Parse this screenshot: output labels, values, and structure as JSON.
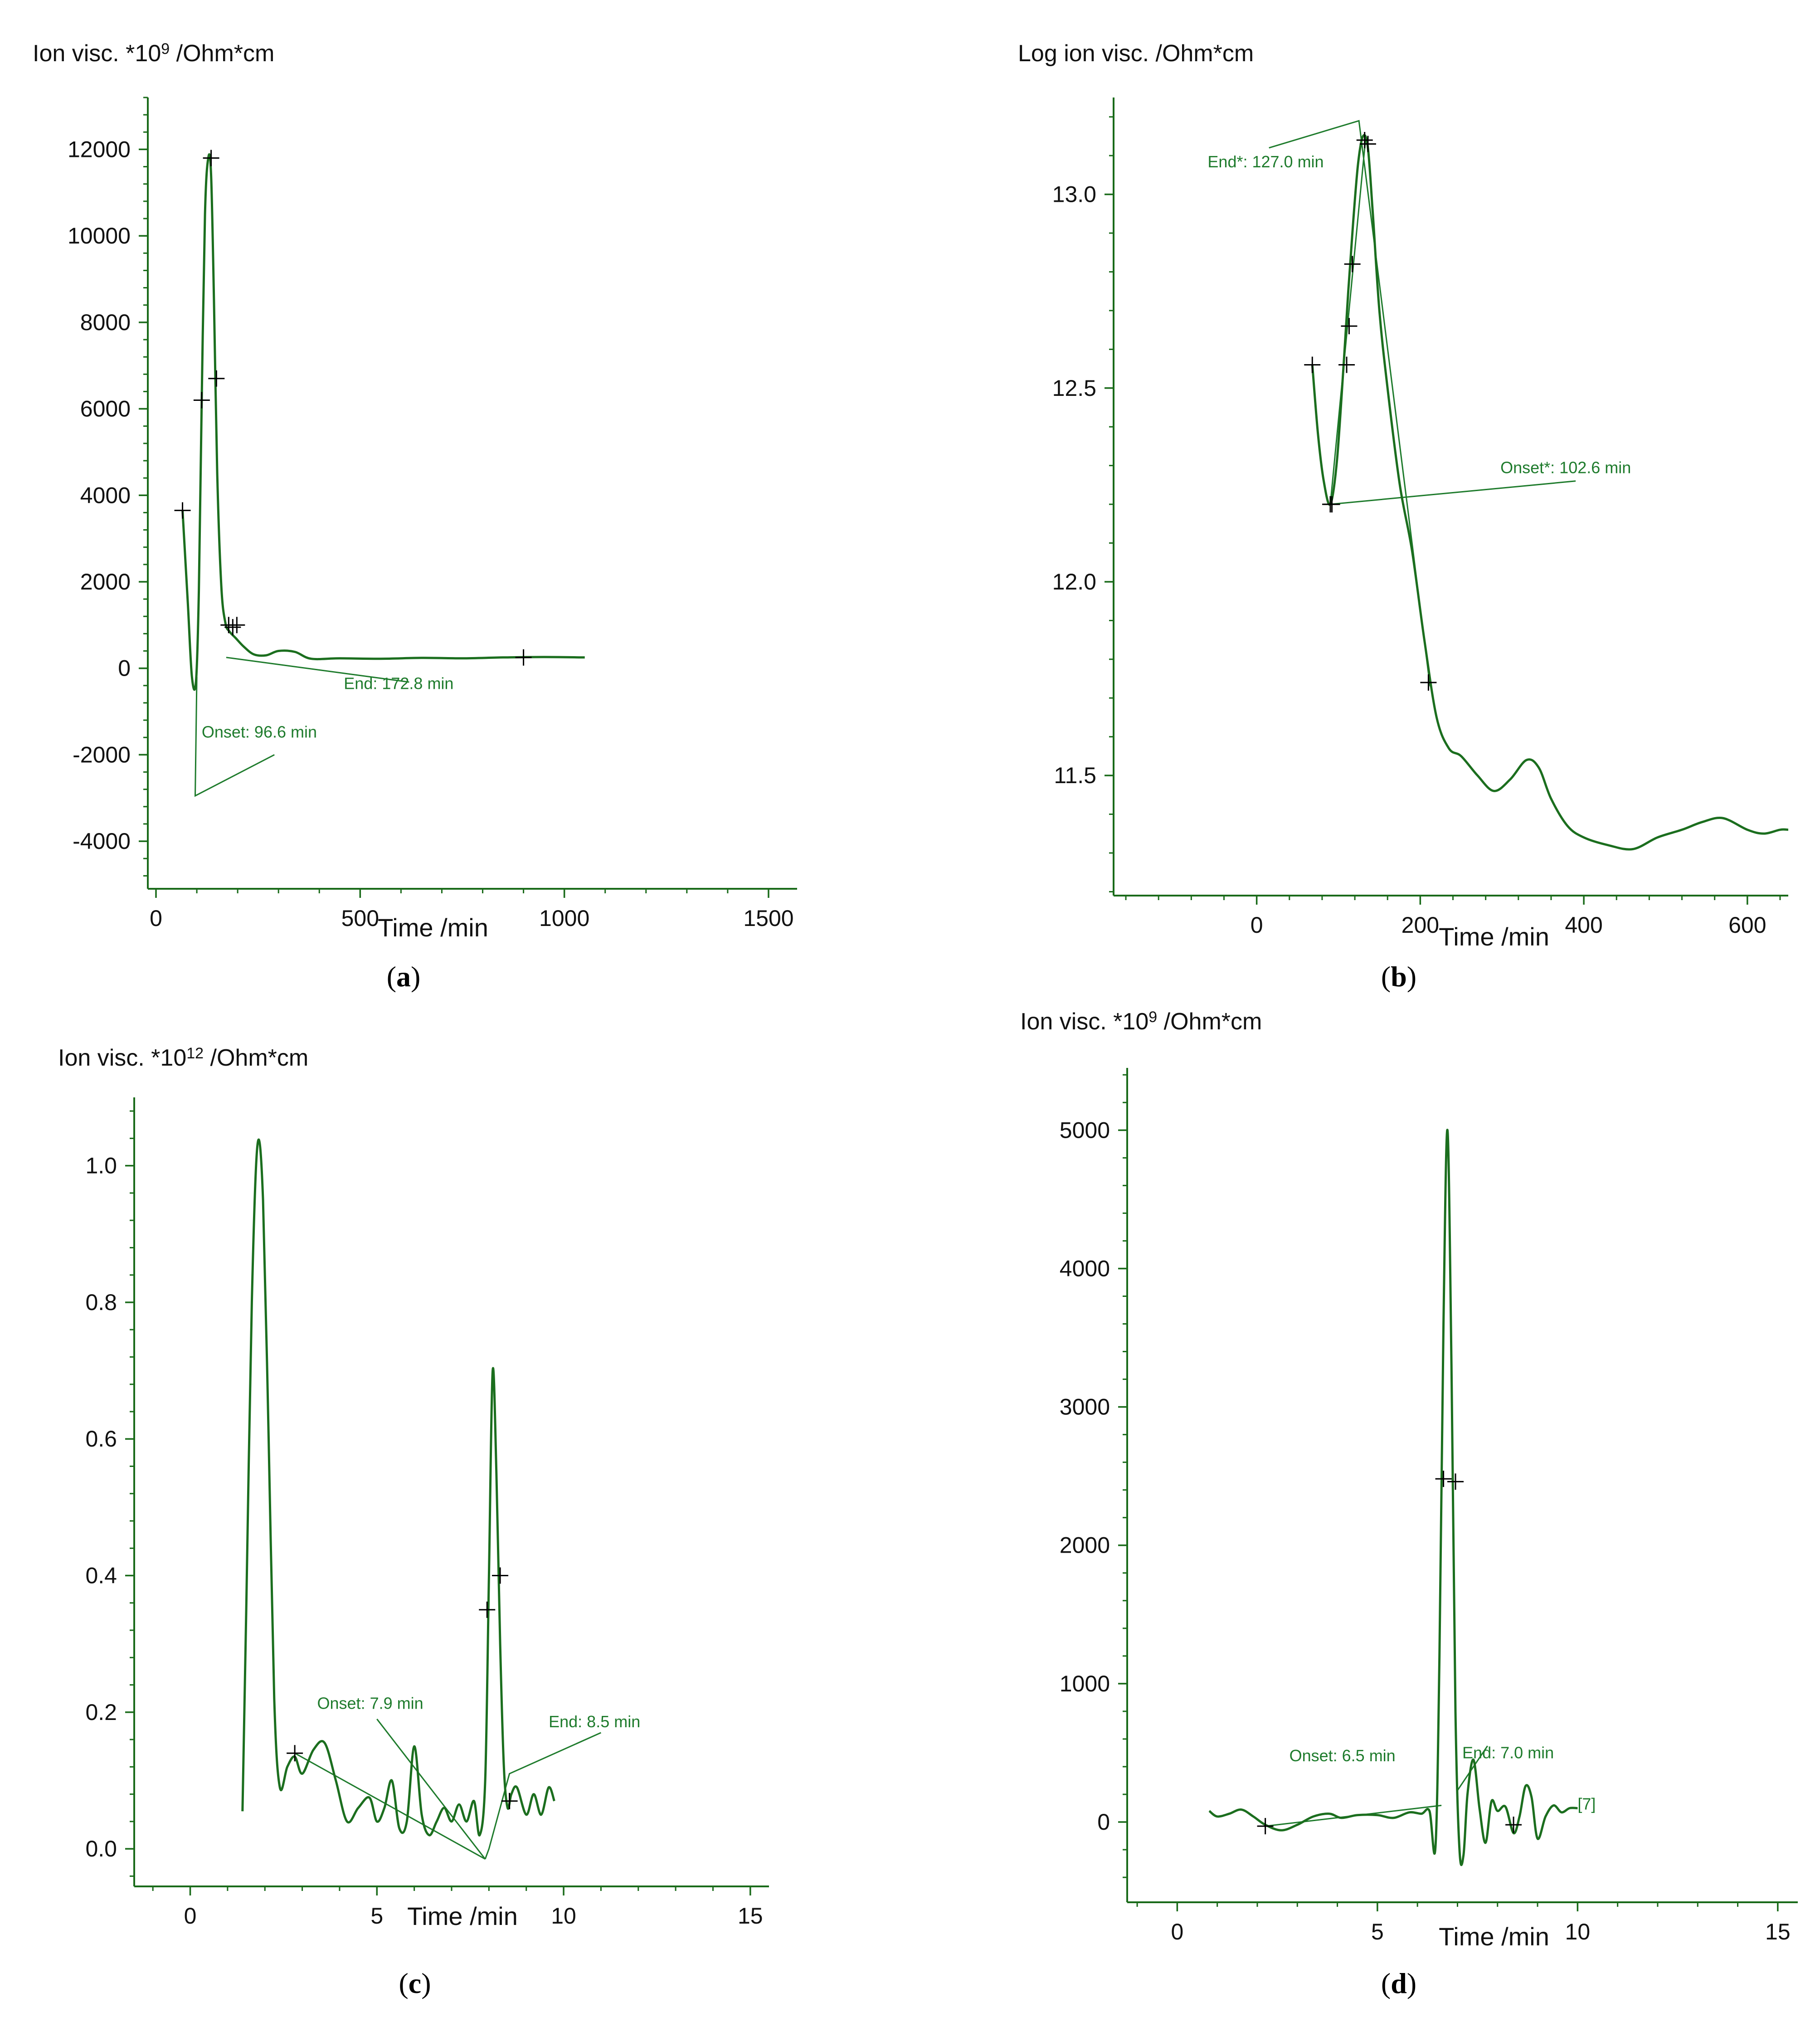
{
  "colors": {
    "curve": "#1b6e1e",
    "annotation": "#1e7b2c",
    "axis": "#1a6b1a",
    "marker": "#000000"
  },
  "chart_data": [
    {
      "panel": "a",
      "type": "line",
      "ylabel_base": "Ion visc. *10",
      "ylabel_exp": "9",
      "ylabel_unit": " /Ohm*cm",
      "xlabel": "Time /min",
      "xlim": [
        -20,
        1570
      ],
      "ylim": [
        -5100,
        13200
      ],
      "xticks": [
        0,
        500,
        1000,
        1500
      ],
      "xtick_labels": [
        "0",
        "500",
        "1000",
        "1500"
      ],
      "yticks": [
        -4000,
        -2000,
        0,
        2000,
        4000,
        6000,
        8000,
        10000,
        12000
      ],
      "ytick_labels": [
        "-4000",
        "-2000",
        "0",
        "2000",
        "4000",
        "6000",
        "8000",
        "10000",
        "12000"
      ],
      "series": [
        {
          "name": "ion viscosity",
          "x": [
            65,
            78,
            88,
            98,
            105,
            112,
            120,
            128,
            135,
            142,
            150,
            160,
            170,
            180,
            195,
            215,
            240,
            270,
            300,
            340,
            380,
            450,
            550,
            650,
            750,
            850,
            950,
            1050
          ],
          "y": [
            3650,
            1500,
            -200,
            -300,
            1800,
            6200,
            10500,
            11800,
            11400,
            8500,
            4500,
            1900,
            1050,
            850,
            700,
            500,
            320,
            300,
            400,
            380,
            220,
            230,
            220,
            240,
            230,
            250,
            260,
            250
          ]
        }
      ],
      "markers": [
        [
          65,
          3650
        ],
        [
          112,
          6200
        ],
        [
          135,
          11800
        ],
        [
          148,
          6700
        ],
        [
          178,
          1000
        ],
        [
          188,
          950
        ],
        [
          198,
          1000
        ],
        [
          900,
          250
        ]
      ],
      "annotations": [
        {
          "label": "Onset: 96.6 min",
          "x": 112,
          "y": -1600,
          "lines": [
            [
              [
                100,
                -200
              ],
              [
                96,
                -2950
              ],
              [
                290,
                -2000
              ]
            ]
          ]
        },
        {
          "label": "End: 172.8 min",
          "x": 460,
          "y": -480,
          "lines": [
            [
              [
                172,
                250
              ],
              [
                620,
                -320
              ]
            ]
          ]
        }
      ]
    },
    {
      "panel": "b",
      "type": "line",
      "ylabel_base": "Log ion visc. /Ohm*cm",
      "ylabel_exp": "",
      "ylabel_unit": "",
      "xlabel": "Time /min",
      "xlim": [
        -175,
        650
      ],
      "ylim": [
        11.19,
        13.25
      ],
      "xticks": [
        0,
        200,
        400,
        600
      ],
      "xtick_labels": [
        "0",
        "200",
        "400",
        "600"
      ],
      "yticks": [
        11.5,
        12.0,
        12.5,
        13.0
      ],
      "ytick_labels": [
        "11.5",
        "12.0",
        "12.5",
        "13.0"
      ],
      "series": [
        {
          "name": "log ion viscosity",
          "x": [
            68,
            75,
            82,
            90,
            98,
            106,
            112,
            118,
            124,
            130,
            136,
            142,
            150,
            160,
            175,
            190,
            205,
            220,
            235,
            250,
            270,
            290,
            310,
            330,
            345,
            360,
            380,
            400,
            430,
            460,
            490,
            520,
            545,
            570,
            600,
            620,
            640,
            650
          ],
          "y": [
            12.56,
            12.38,
            12.26,
            12.2,
            12.31,
            12.55,
            12.75,
            12.93,
            13.08,
            13.15,
            13.12,
            12.95,
            12.7,
            12.5,
            12.25,
            12.08,
            11.85,
            11.65,
            11.57,
            11.55,
            11.5,
            11.46,
            11.49,
            11.54,
            11.52,
            11.44,
            11.37,
            11.34,
            11.32,
            11.31,
            11.34,
            11.36,
            11.38,
            11.39,
            11.36,
            11.35,
            11.36,
            11.36
          ]
        }
      ],
      "markers": [
        [
          68,
          12.56
        ],
        [
          90,
          12.2
        ],
        [
          92,
          12.2
        ],
        [
          110,
          12.56
        ],
        [
          113,
          12.66
        ],
        [
          117,
          12.82
        ],
        [
          132,
          13.14
        ],
        [
          136,
          13.13
        ],
        [
          210,
          11.74
        ]
      ],
      "annotations": [
        {
          "label": "End*: 127.0 min",
          "x": -60,
          "y": 13.07,
          "lines": [
            [
              [
                15,
                13.12
              ],
              [
                125,
                13.19
              ],
              [
                212,
                11.73
              ]
            ]
          ]
        },
        {
          "label": "Onset*: 102.6 min",
          "x": 298,
          "y": 12.28,
          "lines": [
            [
              [
                90,
                12.2
              ],
              [
                390,
                12.26
              ]
            ],
            [
              [
                90,
                12.2
              ],
              [
                133,
                13.14
              ]
            ]
          ]
        }
      ]
    },
    {
      "panel": "c",
      "type": "line",
      "ylabel_base": "Ion visc. *10",
      "ylabel_exp": "12",
      "ylabel_unit": " /Ohm*cm",
      "xlabel": "Time /min",
      "xlim": [
        -1.5,
        15.5
      ],
      "ylim": [
        -0.055,
        1.1
      ],
      "xticks": [
        0,
        5,
        10,
        15
      ],
      "xtick_labels": [
        "0",
        "5",
        "10",
        "15"
      ],
      "yticks": [
        0.0,
        0.2,
        0.4,
        0.6,
        0.8,
        1.0
      ],
      "ytick_labels": [
        "0.0",
        "0.2",
        "0.4",
        "0.6",
        "0.8",
        "1.0"
      ],
      "series": [
        {
          "name": "ion viscosity",
          "x": [
            1.4,
            1.5,
            1.65,
            1.8,
            1.95,
            2.1,
            2.25,
            2.4,
            2.6,
            2.8,
            3.0,
            3.3,
            3.6,
            3.9,
            4.2,
            4.5,
            4.8,
            5.0,
            5.2,
            5.4,
            5.6,
            5.8,
            6.0,
            6.2,
            6.4,
            6.6,
            6.8,
            7.0,
            7.2,
            7.4,
            7.6,
            7.75,
            7.9,
            8.0,
            8.1,
            8.2,
            8.3,
            8.4,
            8.5,
            8.6,
            8.75,
            9.0,
            9.2,
            9.4,
            9.6,
            9.75
          ],
          "y": [
            0.055,
            0.35,
            0.8,
            1.03,
            0.95,
            0.6,
            0.22,
            0.09,
            0.12,
            0.135,
            0.11,
            0.145,
            0.155,
            0.1,
            0.04,
            0.06,
            0.075,
            0.04,
            0.06,
            0.1,
            0.03,
            0.04,
            0.15,
            0.05,
            0.02,
            0.04,
            0.06,
            0.04,
            0.065,
            0.04,
            0.07,
            0.02,
            0.1,
            0.4,
            0.7,
            0.55,
            0.3,
            0.12,
            0.06,
            0.08,
            0.09,
            0.05,
            0.08,
            0.05,
            0.09,
            0.07
          ]
        }
      ],
      "markers": [
        [
          2.8,
          0.14
        ],
        [
          7.95,
          0.35
        ],
        [
          8.3,
          0.4
        ],
        [
          8.55,
          0.07
        ]
      ],
      "annotations": [
        {
          "label": "Onset: 7.9 min",
          "x": 3.4,
          "y": 0.205,
          "lines": [
            [
              [
                2.8,
                0.14
              ],
              [
                7.9,
                -0.015
              ],
              [
                5.0,
                0.19
              ]
            ]
          ]
        },
        {
          "label": "End: 8.5 min",
          "x": 9.6,
          "y": 0.178,
          "lines": [
            [
              [
                7.9,
                -0.015
              ],
              [
                8.0,
                0.0
              ],
              [
                8.55,
                0.11
              ],
              [
                11.0,
                0.17
              ]
            ]
          ]
        }
      ]
    },
    {
      "panel": "d",
      "type": "line",
      "ylabel_base": "Ion visc. *10",
      "ylabel_exp": "9",
      "ylabel_unit": " /Ohm*cm",
      "xlabel": "Time /min",
      "xlim": [
        -1.25,
        15.5
      ],
      "ylim": [
        -580,
        5450
      ],
      "xticks": [
        0,
        5,
        10,
        15
      ],
      "xtick_labels": [
        "0",
        "5",
        "10",
        "15"
      ],
      "yticks": [
        0,
        1000,
        2000,
        3000,
        4000,
        5000
      ],
      "ytick_labels": [
        "0",
        "1000",
        "2000",
        "3000",
        "4000",
        "5000"
      ],
      "series": [
        {
          "name": "ion viscosity",
          "x": [
            0.8,
            1.0,
            1.3,
            1.6,
            1.9,
            2.2,
            2.6,
            3.0,
            3.4,
            3.8,
            4.1,
            4.5,
            5.0,
            5.4,
            5.8,
            6.1,
            6.3,
            6.45,
            6.55,
            6.65,
            6.75,
            6.85,
            6.95,
            7.05,
            7.15,
            7.25,
            7.4,
            7.55,
            7.7,
            7.85,
            8.0,
            8.2,
            8.4,
            8.55,
            8.7,
            8.85,
            9.0,
            9.2,
            9.4,
            9.6,
            9.8,
            10.0
          ],
          "y": [
            80,
            40,
            60,
            90,
            40,
            -20,
            -60,
            -20,
            40,
            60,
            30,
            50,
            50,
            30,
            70,
            60,
            80,
            -180,
            1200,
            3600,
            5000,
            3300,
            800,
            -200,
            -240,
            200,
            450,
            100,
            -150,
            150,
            80,
            110,
            -80,
            40,
            260,
            180,
            -120,
            40,
            120,
            70,
            100,
            100
          ]
        }
      ],
      "markers": [
        [
          2.2,
          -30
        ],
        [
          6.65,
          2480
        ],
        [
          6.95,
          2460
        ],
        [
          8.4,
          -20
        ]
      ],
      "annotations": [
        {
          "label": "Onset: 6.5 min",
          "x": 2.8,
          "y": 440,
          "lines": [
            [
              [
                2.2,
                -30
              ],
              [
                6.6,
                120
              ]
            ]
          ]
        },
        {
          "label": "End: 7.0 min",
          "x": 7.12,
          "y": 460,
          "lines": [
            [
              [
                6.98,
                220
              ],
              [
                7.75,
                550
              ]
            ]
          ]
        },
        {
          "label": "[7]",
          "x": 10.0,
          "y": 90,
          "lines": []
        }
      ]
    }
  ],
  "panel_labels": [
    "a",
    "b",
    "c",
    "d"
  ]
}
